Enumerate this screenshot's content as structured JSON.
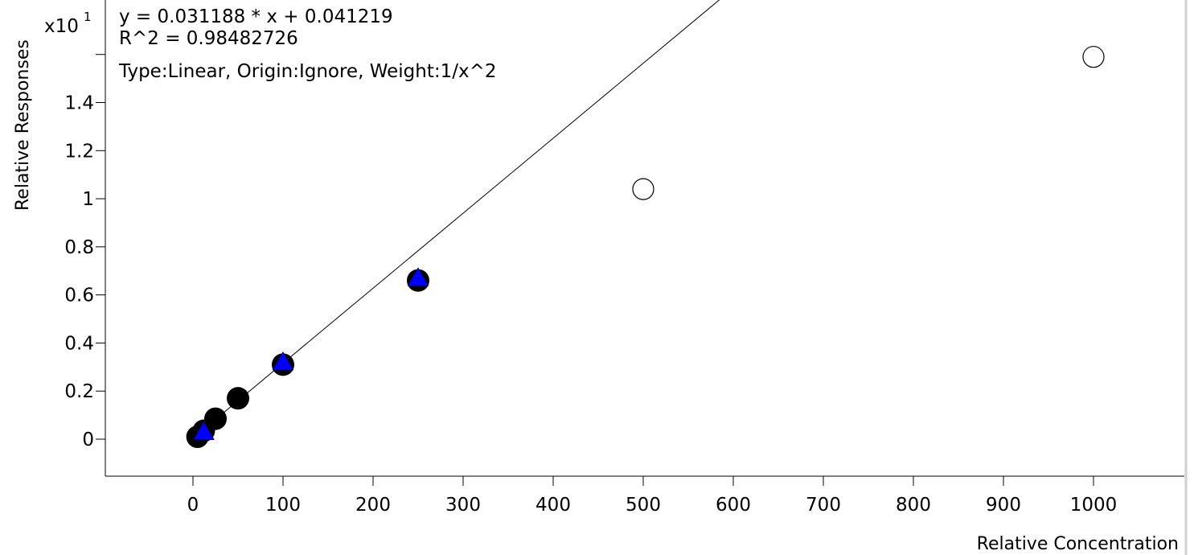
{
  "chart_data": {
    "type": "scatter",
    "xlabel": "Relative Concentration",
    "ylabel": "Relative Responses",
    "y_multiplier": "x10",
    "y_multiplier_exp": "1",
    "annotations": [
      "y = 0.031188 * x  + 0.041219",
      "R^2 = 0.98482726",
      "Type:Linear, Origin:Ignore, Weight:1/x^2"
    ],
    "fit": {
      "slope": 0.031188,
      "intercept": 0.041219,
      "r2": 0.98482726
    },
    "xlim": [
      -95,
      1110
    ],
    "ylim": [
      -0.14,
      1.87
    ],
    "x_ticks": [
      0,
      100,
      200,
      300,
      400,
      500,
      600,
      700,
      800,
      900,
      1000
    ],
    "y_ticks": [
      0,
      0.2,
      0.4,
      0.6,
      0.8,
      1,
      1.2,
      1.4,
      1.6
    ],
    "x_tick_labels": [
      "0",
      "100",
      "200",
      "300",
      "400",
      "500",
      "600",
      "700",
      "800",
      "900",
      "1000"
    ],
    "y_tick_labels": [
      "0",
      "0.2",
      "0.4",
      "0.6",
      "0.8",
      "1",
      "1.2",
      "1.4",
      ""
    ],
    "series": [
      {
        "marker": "filled-circle",
        "color": "#000000",
        "points": [
          [
            5,
            0.01
          ],
          [
            12,
            0.035
          ],
          [
            25,
            0.085
          ],
          [
            50,
            0.17
          ],
          [
            100,
            0.31
          ],
          [
            250,
            0.66
          ]
        ]
      },
      {
        "marker": "open-circle",
        "color": "#000000",
        "points": [
          [
            500,
            1.04
          ],
          [
            1000,
            1.59
          ]
        ]
      },
      {
        "marker": "triangle",
        "color": "#0000ff",
        "points": [
          [
            12,
            0.03
          ],
          [
            100,
            0.32
          ],
          [
            250,
            0.67
          ]
        ]
      }
    ]
  }
}
